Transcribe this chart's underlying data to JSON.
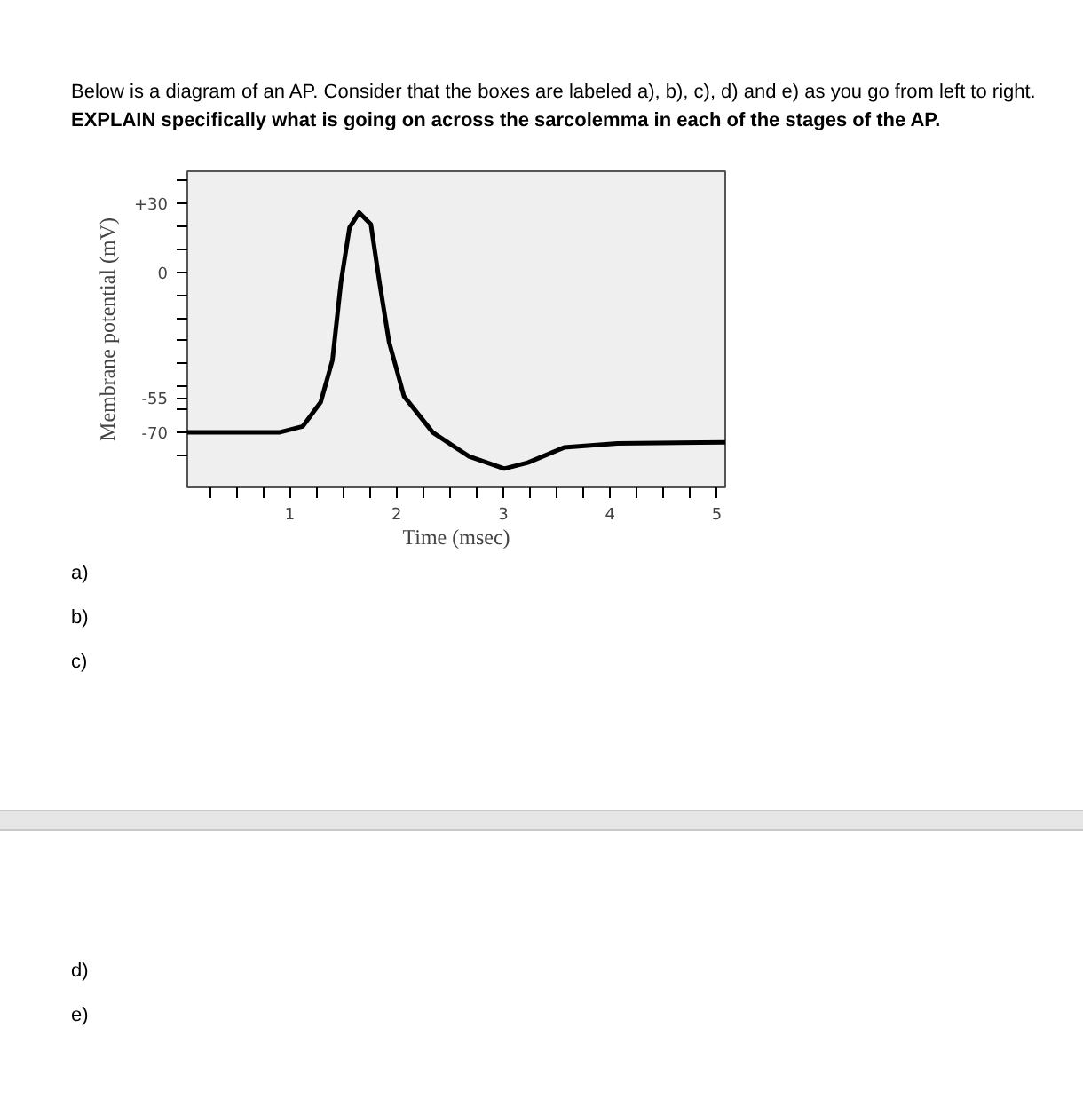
{
  "chart_data": {
    "type": "line",
    "title": "Below is a diagram of an AP.  Consider that the boxes are labeled a), b), c), d) and e) as you go from left to right.",
    "subtitle": "EXPLAIN specifically what is going on across the sarcolemma in each of the stages of the AP.",
    "xlabel": "Time (msec)",
    "ylabel": "Membrane potential (mV)",
    "x": [
      0.04,
      0.9,
      1.12,
      1.29,
      1.4,
      1.48,
      1.56,
      1.65,
      1.76,
      1.84,
      1.93,
      2.07,
      2.34,
      2.68,
      3.01,
      3.23,
      3.57,
      4.07,
      5.08
    ],
    "values": [
      -70,
      -70,
      -67.4,
      -56.8,
      -38.4,
      -4.3,
      19.4,
      26,
      20.8,
      -4.3,
      -30.5,
      -54.2,
      -70,
      -80.5,
      -85.8,
      -83.2,
      -76.6,
      -74.8,
      -74.3
    ],
    "color": "#000000",
    "xlim": [
      0.04,
      5.08
    ],
    "ylim": [
      -94,
      44
    ],
    "xticks": [
      {
        "value": 0.25,
        "label": null
      },
      {
        "value": 0.5,
        "label": null
      },
      {
        "value": 0.75,
        "label": null
      },
      1,
      {
        "value": 1.25,
        "label": null
      },
      {
        "value": 1.5,
        "label": null
      },
      {
        "value": 1.75,
        "label": null
      },
      2,
      {
        "value": 2.25,
        "label": null
      },
      {
        "value": 2.5,
        "label": null
      },
      {
        "value": 2.75,
        "label": null
      },
      3,
      {
        "value": 3.25,
        "label": null
      },
      {
        "value": 3.5,
        "label": null
      },
      {
        "value": 3.75,
        "label": null
      },
      4,
      {
        "value": 4.25,
        "label": null
      },
      {
        "value": 4.5,
        "label": null
      },
      {
        "value": 4.75,
        "label": null
      },
      5
    ],
    "yticks": [
      {
        "value": 40,
        "label": null
      },
      {
        "value": 30,
        "label": "+30"
      },
      {
        "value": 20,
        "label": null
      },
      {
        "value": 10,
        "label": null
      },
      0,
      {
        "value": -10,
        "label": null
      },
      {
        "value": -20,
        "label": null
      },
      {
        "value": -30,
        "label": null
      },
      {
        "value": -40,
        "label": null
      },
      {
        "value": -50,
        "label": null
      },
      {
        "value": -55,
        "label": "-55"
      },
      {
        "value": -60,
        "label": null
      },
      {
        "value": -70,
        "label": "-70"
      },
      {
        "value": -80,
        "label": null
      }
    ],
    "grid": false,
    "annotations": [
      "a)",
      "b)",
      "c)",
      "d)",
      "e)"
    ]
  }
}
